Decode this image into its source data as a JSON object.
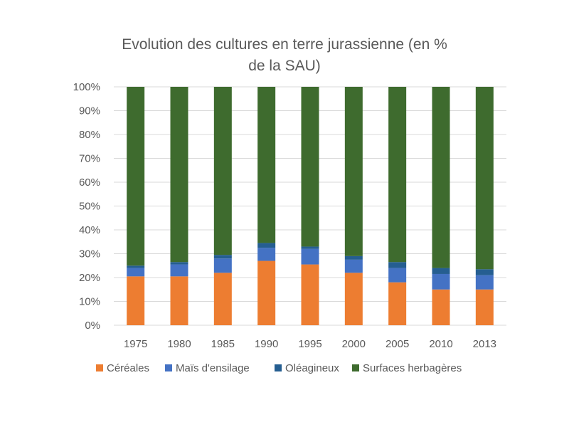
{
  "chart_data": {
    "type": "bar",
    "stacked": true,
    "title_lines": [
      "Evolution des cultures en terre jurassienne (en %",
      "de la SAU)"
    ],
    "categories": [
      "1975",
      "1980",
      "1985",
      "1990",
      "1995",
      "2000",
      "2005",
      "2010",
      "2013"
    ],
    "series": [
      {
        "name": "Céréales",
        "color": "#ED7D31",
        "values": [
          20.5,
          20.5,
          22.0,
          27.0,
          25.5,
          22.0,
          18.0,
          15.0,
          15.0
        ]
      },
      {
        "name": "Maïs d'ensilage",
        "color": "#4472C4",
        "values": [
          3.5,
          5.0,
          6.0,
          5.5,
          6.5,
          5.5,
          6.0,
          6.5,
          6.0
        ]
      },
      {
        "name": "Oléagineux",
        "color": "#255E91",
        "values": [
          1.0,
          1.0,
          1.5,
          2.0,
          1.0,
          1.5,
          2.5,
          2.5,
          2.5
        ]
      },
      {
        "name": "Surfaces herbagères",
        "color": "#3E6B2E",
        "values": [
          75.0,
          73.5,
          70.5,
          65.5,
          67.0,
          71.0,
          73.5,
          76.0,
          76.5
        ]
      }
    ],
    "yticks": [
      "0%",
      "10%",
      "20%",
      "30%",
      "40%",
      "50%",
      "60%",
      "70%",
      "80%",
      "90%",
      "100%"
    ],
    "ylim": [
      0,
      100
    ],
    "grid": true,
    "legend_position": "bottom"
  }
}
